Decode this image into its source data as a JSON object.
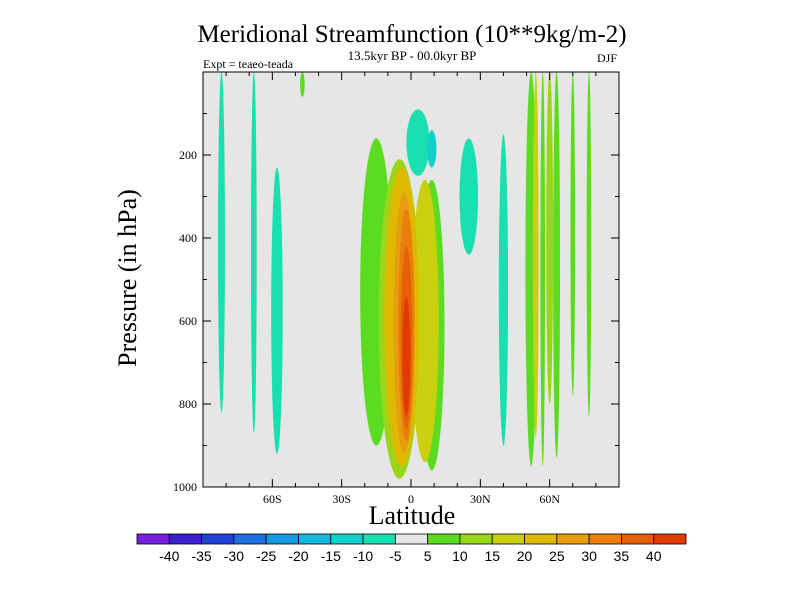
{
  "chart_data": {
    "type": "heatmap",
    "title": "Meridional Streamfunction (10**9kg/m-2)",
    "subtitle": "13.5kyr BP - 00.0kyr BP",
    "experiment": "Expt = teaeo-teada",
    "season": "DJF",
    "xlabel": "Latitude",
    "ylabel": "Pressure (in hPa)",
    "xlim": [
      -90,
      90
    ],
    "ylim": [
      1000,
      0
    ],
    "x_ticks": [
      {
        "value": -60,
        "label": "60S"
      },
      {
        "value": -30,
        "label": "30S"
      },
      {
        "value": 0,
        "label": "0"
      },
      {
        "value": 30,
        "label": "30N"
      },
      {
        "value": 60,
        "label": "60N"
      }
    ],
    "y_ticks": [
      {
        "value": 200,
        "label": "200"
      },
      {
        "value": 400,
        "label": "400"
      },
      {
        "value": 600,
        "label": "600"
      },
      {
        "value": 800,
        "label": "800"
      },
      {
        "value": 1000,
        "label": "1000"
      }
    ],
    "background_color": "#e6e6e6",
    "colorbar": {
      "colors": [
        "#7a1fe0",
        "#3a1fd0",
        "#2142d8",
        "#1f6fe0",
        "#1799e0",
        "#14b8dc",
        "#10d0cc",
        "#18e0b0",
        "#e6e6e6",
        "#5cdc20",
        "#9ad618",
        "#c8d010",
        "#e0b800",
        "#e89c10",
        "#e8800a",
        "#e66008",
        "#e03c00"
      ],
      "labels": [
        "-40",
        "-35",
        "-30",
        "-25",
        "-20",
        "-15",
        "-10",
        "-5",
        "5",
        "10",
        "15",
        "20",
        "25",
        "30",
        "35",
        "40"
      ]
    },
    "cells": [
      {
        "lat": -82,
        "p": 0,
        "p_end": 820,
        "width": 3,
        "level": -4
      },
      {
        "lat": -68,
        "p": 0,
        "p_end": 870,
        "width": 2.5,
        "level": -4
      },
      {
        "lat": -58,
        "p": 230,
        "p_end": 920,
        "width": 5,
        "level": -4
      },
      {
        "lat": -47,
        "p": 0,
        "p_end": 60,
        "width": 2,
        "level": 4
      },
      {
        "lat": -15,
        "p": 160,
        "p_end": 900,
        "width": 14,
        "level": 4
      },
      {
        "lat": 9,
        "p": 260,
        "p_end": 960,
        "width": 11,
        "level": 4
      },
      {
        "lat": -5,
        "p": 210,
        "p_end": 980,
        "width": 18,
        "level": 8
      },
      {
        "lat": 6,
        "p": 260,
        "p_end": 940,
        "width": 12,
        "level": 12
      },
      {
        "lat": -4,
        "p": 230,
        "p_end": 950,
        "width": 15,
        "level": 16
      },
      {
        "lat": -3,
        "p": 260,
        "p_end": 935,
        "width": 12,
        "level": 20
      },
      {
        "lat": -3,
        "p": 290,
        "p_end": 920,
        "width": 9,
        "level": 24
      },
      {
        "lat": -2,
        "p": 330,
        "p_end": 890,
        "width": 7,
        "level": 28
      },
      {
        "lat": -2,
        "p": 420,
        "p_end": 860,
        "width": 5,
        "level": 32
      },
      {
        "lat": -2,
        "p": 540,
        "p_end": 830,
        "width": 3.5,
        "level": 37
      },
      {
        "lat": 3,
        "p": 90,
        "p_end": 250,
        "width": 10,
        "level": -4
      },
      {
        "lat": 9,
        "p": 140,
        "p_end": 230,
        "width": 4,
        "level": -8
      },
      {
        "lat": 25,
        "p": 160,
        "p_end": 440,
        "width": 8,
        "level": -4
      },
      {
        "lat": 40,
        "p": 150,
        "p_end": 900,
        "width": 4,
        "level": -4
      },
      {
        "lat": 52,
        "p": 0,
        "p_end": 950,
        "width": 5,
        "level": 4
      },
      {
        "lat": 54,
        "p": 0,
        "p_end": 880,
        "width": 2.5,
        "level": 12
      },
      {
        "lat": 57,
        "p": 0,
        "p_end": 950,
        "width": 2,
        "level": 4
      },
      {
        "lat": 60,
        "p": 0,
        "p_end": 800,
        "width": 3,
        "level": 8
      },
      {
        "lat": 63,
        "p": 0,
        "p_end": 930,
        "width": 3,
        "level": 4
      },
      {
        "lat": 70,
        "p": 0,
        "p_end": 780,
        "width": 2,
        "level": 4
      },
      {
        "lat": 77,
        "p": 0,
        "p_end": 830,
        "width": 2,
        "level": 4
      }
    ]
  }
}
